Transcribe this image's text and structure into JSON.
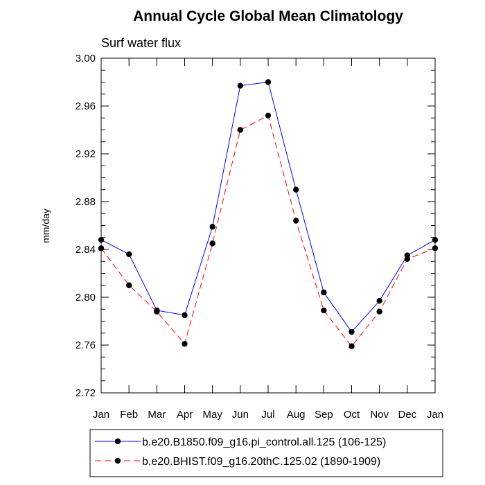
{
  "chart_data": {
    "type": "line",
    "title": "Annual Cycle Global Mean Climatology",
    "subtitle": "Surf water flux",
    "xlabel": "",
    "ylabel": "mm/day",
    "categories": [
      "Jan",
      "Feb",
      "Mar",
      "Apr",
      "May",
      "Jun",
      "Jul",
      "Aug",
      "Sep",
      "Oct",
      "Nov",
      "Dec",
      "Jan"
    ],
    "ylim": [
      2.72,
      3.0
    ],
    "yticks": [
      "2.72",
      "2.76",
      "2.80",
      "2.84",
      "2.88",
      "2.92",
      "2.96",
      "3.00"
    ],
    "grid": false,
    "legend_position": "bottom",
    "series": [
      {
        "name": "b.e20.B1850.f09_g16.pi_control.all.125 (106-125)",
        "color": "#0000ff",
        "line_style": "solid",
        "values": [
          2.848,
          2.836,
          2.789,
          2.785,
          2.859,
          2.977,
          2.98,
          2.89,
          2.804,
          2.771,
          2.797,
          2.835,
          2.848
        ]
      },
      {
        "name": "b.e20.BHIST.f09_g16.20thC.125.02 (1890-1909)",
        "color": "#ff0000",
        "line_style": "dashed",
        "values": [
          2.841,
          2.81,
          2.788,
          2.761,
          2.845,
          2.94,
          2.952,
          2.864,
          2.789,
          2.759,
          2.788,
          2.832,
          2.841
        ]
      }
    ]
  }
}
